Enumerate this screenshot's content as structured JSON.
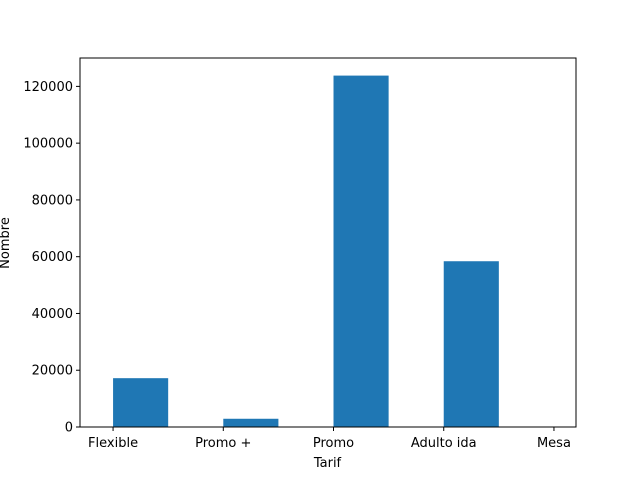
{
  "chart_data": {
    "type": "bar",
    "title": "",
    "xlabel": "Tarif",
    "ylabel": "Nombre",
    "x_ticks": [
      {
        "label": "Flexible",
        "pos": 0
      },
      {
        "label": "Promo +",
        "pos": 1
      },
      {
        "label": "Promo",
        "pos": 2
      },
      {
        "label": "Adulto ida",
        "pos": 3
      },
      {
        "label": "Mesa",
        "pos": 4
      }
    ],
    "bars": [
      {
        "x": 0.25,
        "value": 17200
      },
      {
        "x": 1.25,
        "value": 2900
      },
      {
        "x": 1.75,
        "value": 0
      },
      {
        "x": 2.25,
        "value": 123800
      },
      {
        "x": 2.75,
        "value": 0
      },
      {
        "x": 3.25,
        "value": 58400
      },
      {
        "x": 3.75,
        "value": 0
      }
    ],
    "bar_width": 0.5,
    "xlim": [
      -0.3,
      4.2
    ],
    "ylim": [
      0,
      130000
    ],
    "y_ticks": [
      0,
      20000,
      40000,
      60000,
      80000,
      100000,
      120000
    ],
    "grid": false,
    "legend": "none",
    "bar_color": "#1f77b4"
  }
}
